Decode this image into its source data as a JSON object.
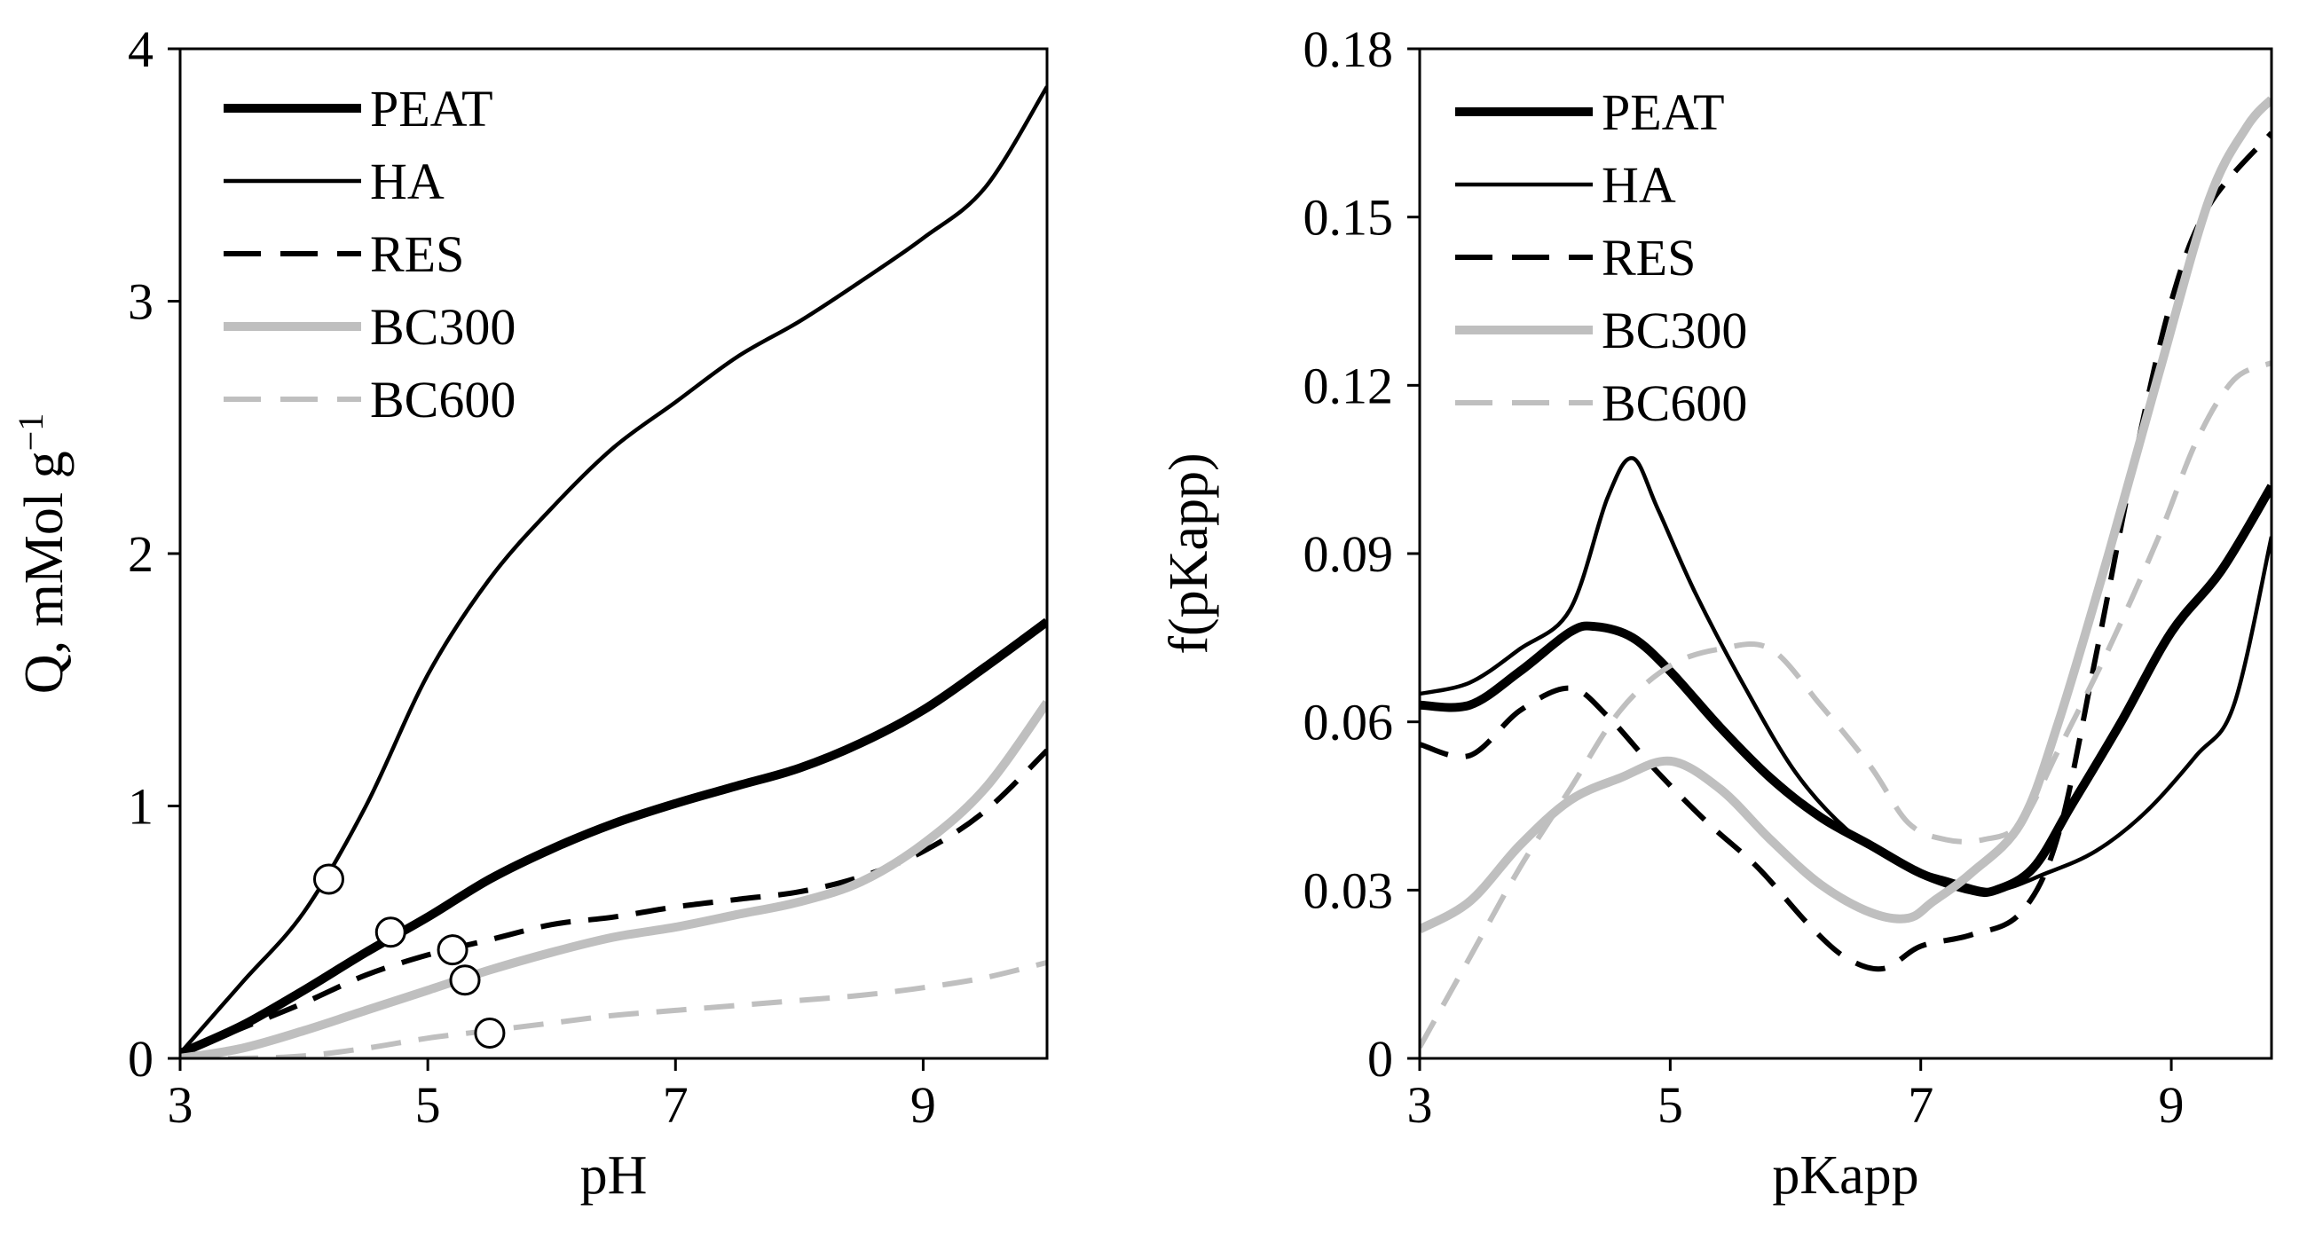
{
  "chart_data": [
    {
      "type": "line",
      "xlabel": "pH",
      "ylabel": "Q, mMol g",
      "ylabel_sup": "−1",
      "xlim": [
        3,
        10
      ],
      "ylim": [
        0,
        4
      ],
      "xticks": [
        3,
        5,
        7,
        9
      ],
      "yticks": [
        0,
        1,
        2,
        3,
        4
      ],
      "legend_position": "top-left",
      "grid": false,
      "series": [
        {
          "name": "PEAT",
          "color": "#000000",
          "style": "thick",
          "x": [
            3.0,
            3.5,
            4.0,
            4.5,
            5.0,
            5.5,
            6.0,
            6.5,
            7.0,
            7.5,
            8.0,
            8.5,
            9.0,
            9.5,
            10.0
          ],
          "y": [
            0.02,
            0.13,
            0.27,
            0.42,
            0.56,
            0.71,
            0.83,
            0.93,
            1.01,
            1.08,
            1.15,
            1.25,
            1.38,
            1.55,
            1.73
          ]
        },
        {
          "name": "HA",
          "color": "#000000",
          "style": "thin",
          "x": [
            3.0,
            3.5,
            4.0,
            4.5,
            5.0,
            5.5,
            6.0,
            6.5,
            7.0,
            7.5,
            8.0,
            8.5,
            9.0,
            9.5,
            10.0
          ],
          "y": [
            0.02,
            0.3,
            0.58,
            1.0,
            1.52,
            1.9,
            2.18,
            2.42,
            2.6,
            2.78,
            2.92,
            3.08,
            3.25,
            3.45,
            3.85
          ]
        },
        {
          "name": "RES",
          "color": "#000000",
          "style": "dashed",
          "x": [
            3.0,
            3.5,
            4.0,
            4.5,
            5.0,
            5.5,
            6.0,
            6.5,
            7.0,
            7.5,
            8.0,
            8.5,
            9.0,
            9.5,
            10.0
          ],
          "y": [
            0.02,
            0.12,
            0.22,
            0.33,
            0.41,
            0.47,
            0.53,
            0.56,
            0.6,
            0.63,
            0.66,
            0.72,
            0.82,
            0.98,
            1.22
          ]
        },
        {
          "name": "BC300",
          "color": "#bfbfbf",
          "style": "thick",
          "x": [
            3.0,
            3.5,
            4.0,
            4.5,
            5.0,
            5.5,
            6.0,
            6.5,
            7.0,
            7.5,
            8.0,
            8.5,
            9.0,
            9.5,
            10.0
          ],
          "y": [
            0.0,
            0.04,
            0.11,
            0.19,
            0.27,
            0.35,
            0.42,
            0.48,
            0.52,
            0.57,
            0.62,
            0.7,
            0.85,
            1.07,
            1.41
          ]
        },
        {
          "name": "BC600",
          "color": "#bfbfbf",
          "style": "dashed",
          "x": [
            3.0,
            3.5,
            4.0,
            4.5,
            5.0,
            5.5,
            6.0,
            6.5,
            7.0,
            7.5,
            8.0,
            8.5,
            9.0,
            9.5,
            10.0
          ],
          "y": [
            0.0,
            0.0,
            0.01,
            0.04,
            0.08,
            0.11,
            0.14,
            0.17,
            0.19,
            0.21,
            0.23,
            0.25,
            0.28,
            0.32,
            0.38
          ]
        }
      ],
      "markers": [
        {
          "x": 4.2,
          "y": 0.71
        },
        {
          "x": 4.7,
          "y": 0.5
        },
        {
          "x": 5.2,
          "y": 0.43
        },
        {
          "x": 5.3,
          "y": 0.31
        },
        {
          "x": 5.5,
          "y": 0.1
        }
      ]
    },
    {
      "type": "line",
      "xlabel": "pKapp",
      "ylabel": "f(pKapp)",
      "xlim": [
        3,
        9.8
      ],
      "ylim": [
        0,
        0.18
      ],
      "xticks": [
        3,
        5,
        7,
        9
      ],
      "yticks": [
        0,
        0.03,
        0.06,
        0.09,
        0.12,
        0.15,
        0.18
      ],
      "ytick_labels": [
        "0",
        "0.03",
        "0.06",
        "0.09",
        "0.12",
        "0.15",
        "0.18"
      ],
      "legend_position": "top-left",
      "grid": false,
      "series": [
        {
          "name": "PEAT",
          "color": "#000000",
          "style": "thick",
          "x": [
            3.0,
            3.4,
            3.8,
            4.2,
            4.4,
            4.7,
            5.0,
            5.4,
            5.8,
            6.2,
            6.6,
            7.0,
            7.4,
            7.6,
            7.9,
            8.2,
            8.6,
            9.0,
            9.4,
            9.8
          ],
          "y": [
            0.063,
            0.063,
            0.069,
            0.076,
            0.077,
            0.075,
            0.069,
            0.059,
            0.05,
            0.043,
            0.038,
            0.033,
            0.03,
            0.03,
            0.034,
            0.045,
            0.06,
            0.076,
            0.087,
            0.102
          ]
        },
        {
          "name": "HA",
          "color": "#000000",
          "style": "thin",
          "x": [
            3.0,
            3.4,
            3.8,
            4.2,
            4.5,
            4.7,
            4.9,
            5.2,
            5.6,
            6.0,
            6.4,
            6.8,
            7.2,
            7.6,
            8.0,
            8.4,
            8.8,
            9.2,
            9.5,
            9.8
          ],
          "y": [
            0.065,
            0.067,
            0.073,
            0.08,
            0.1,
            0.107,
            0.098,
            0.083,
            0.066,
            0.051,
            0.041,
            0.035,
            0.032,
            0.03,
            0.033,
            0.037,
            0.044,
            0.054,
            0.063,
            0.093
          ]
        },
        {
          "name": "RES",
          "color": "#000000",
          "style": "dashed",
          "x": [
            3.0,
            3.4,
            3.8,
            4.2,
            4.5,
            4.9,
            5.3,
            5.7,
            6.1,
            6.4,
            6.7,
            7.0,
            7.4,
            7.8,
            8.1,
            8.4,
            8.7,
            9.0,
            9.3,
            9.8
          ],
          "y": [
            0.056,
            0.054,
            0.062,
            0.066,
            0.061,
            0.051,
            0.042,
            0.034,
            0.024,
            0.018,
            0.016,
            0.02,
            0.022,
            0.026,
            0.04,
            0.072,
            0.106,
            0.135,
            0.152,
            0.165
          ]
        },
        {
          "name": "BC300",
          "color": "#bfbfbf",
          "style": "thick",
          "x": [
            3.0,
            3.4,
            3.8,
            4.2,
            4.6,
            5.0,
            5.4,
            5.8,
            6.2,
            6.6,
            6.9,
            7.1,
            7.4,
            7.8,
            8.1,
            8.5,
            8.9,
            9.3,
            9.6,
            9.8
          ],
          "y": [
            0.023,
            0.028,
            0.038,
            0.046,
            0.05,
            0.053,
            0.048,
            0.039,
            0.031,
            0.026,
            0.025,
            0.028,
            0.033,
            0.042,
            0.06,
            0.09,
            0.122,
            0.153,
            0.166,
            0.171
          ]
        },
        {
          "name": "BC600",
          "color": "#bfbfbf",
          "style": "dashed",
          "x": [
            3.0,
            3.4,
            3.8,
            4.2,
            4.6,
            5.0,
            5.4,
            5.8,
            6.2,
            6.6,
            6.9,
            7.2,
            7.5,
            7.8,
            8.1,
            8.5,
            8.9,
            9.2,
            9.5,
            9.8
          ],
          "y": [
            0.002,
            0.018,
            0.034,
            0.048,
            0.062,
            0.07,
            0.073,
            0.073,
            0.063,
            0.052,
            0.042,
            0.039,
            0.039,
            0.042,
            0.055,
            0.073,
            0.093,
            0.11,
            0.121,
            0.124
          ]
        }
      ]
    }
  ]
}
